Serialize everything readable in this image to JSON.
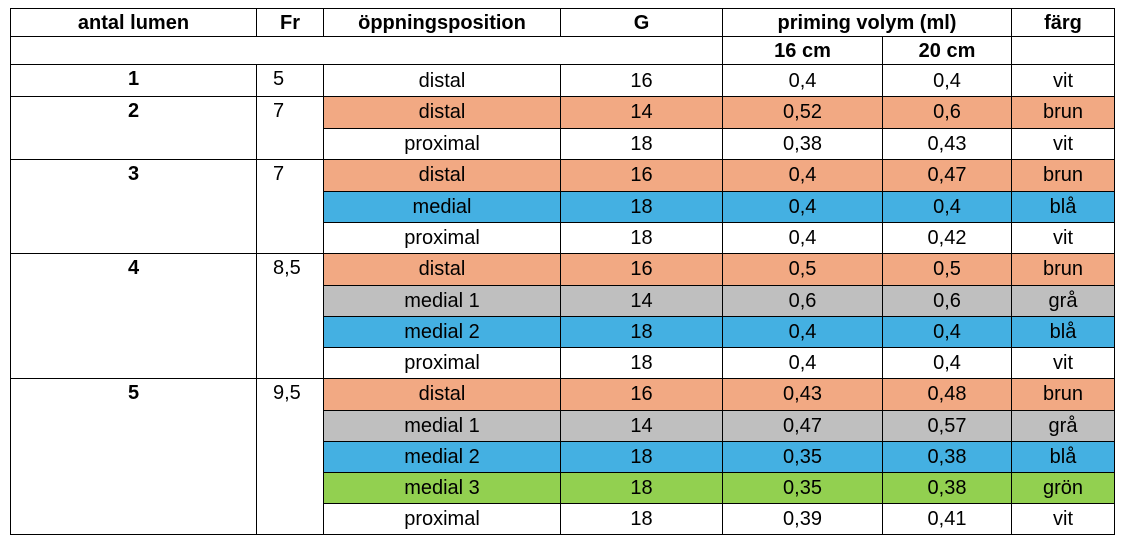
{
  "table": {
    "header": [
      "antal lumen",
      "Fr",
      "öppningsposition",
      "G",
      "priming volym (ml)",
      "färg"
    ],
    "subheader": [
      "16 cm",
      "20 cm"
    ],
    "groups": [
      {
        "lumen": "1",
        "fr": "5",
        "rows": [
          {
            "position": "distal",
            "g": "16",
            "v16": "0,4",
            "v20": "0,4",
            "farg": "vit",
            "fill": "#ffffff"
          }
        ]
      },
      {
        "lumen": "2",
        "fr": "7",
        "rows": [
          {
            "position": "distal",
            "g": "14",
            "v16": "0,52",
            "v20": "0,6",
            "farg": "brun",
            "fill": "#f2a983"
          },
          {
            "position": "proximal",
            "g": "18",
            "v16": "0,38",
            "v20": "0,43",
            "farg": "vit",
            "fill": "#ffffff"
          }
        ]
      },
      {
        "lumen": "3",
        "fr": "7",
        "rows": [
          {
            "position": "distal",
            "g": "16",
            "v16": "0,4",
            "v20": "0,47",
            "farg": "brun",
            "fill": "#f2a983"
          },
          {
            "position": "medial",
            "g": "18",
            "v16": "0,4",
            "v20": "0,4",
            "farg": "blå",
            "fill": "#44b0e2"
          },
          {
            "position": "proximal",
            "g": "18",
            "v16": "0,4",
            "v20": "0,42",
            "farg": "vit",
            "fill": "#ffffff"
          }
        ]
      },
      {
        "lumen": "4",
        "fr": "8,5",
        "rows": [
          {
            "position": "distal",
            "g": "16",
            "v16": "0,5",
            "v20": "0,5",
            "farg": "brun",
            "fill": "#f2a983"
          },
          {
            "position": "medial 1",
            "g": "14",
            "v16": "0,6",
            "v20": "0,6",
            "farg": "grå",
            "fill": "#bfbfbf"
          },
          {
            "position": "medial 2",
            "g": "18",
            "v16": "0,4",
            "v20": "0,4",
            "farg": "blå",
            "fill": "#44b0e2"
          },
          {
            "position": "proximal",
            "g": "18",
            "v16": "0,4",
            "v20": "0,4",
            "farg": "vit",
            "fill": "#ffffff"
          }
        ]
      },
      {
        "lumen": "5",
        "fr": "9,5",
        "rows": [
          {
            "position": "distal",
            "g": "16",
            "v16": "0,43",
            "v20": "0,48",
            "farg": "brun",
            "fill": "#f2a983"
          },
          {
            "position": "medial 1",
            "g": "14",
            "v16": "0,47",
            "v20": "0,57",
            "farg": "grå",
            "fill": "#bfbfbf"
          },
          {
            "position": "medial 2",
            "g": "18",
            "v16": "0,35",
            "v20": "0,38",
            "farg": "blå",
            "fill": "#44b0e2"
          },
          {
            "position": "medial 3",
            "g": "18",
            "v16": "0,35",
            "v20": "0,38",
            "farg": "grön",
            "fill": "#92d050"
          },
          {
            "position": "proximal",
            "g": "18",
            "v16": "0,39",
            "v20": "0,41",
            "farg": "vit",
            "fill": "#ffffff"
          }
        ]
      }
    ]
  }
}
